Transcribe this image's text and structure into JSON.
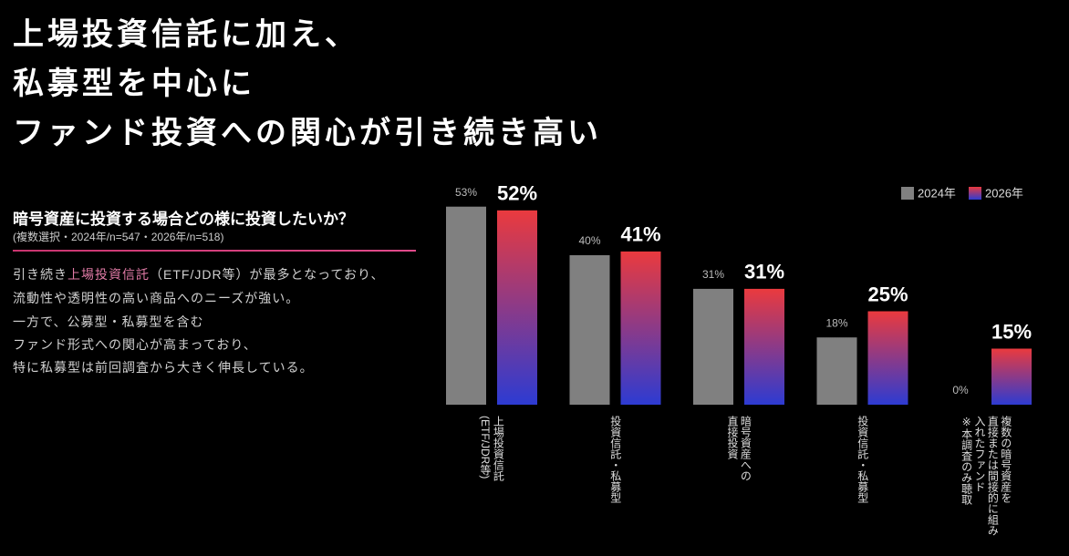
{
  "header": {
    "title_lines": [
      "上場投資信託に加え、",
      "私募型を中心に",
      "ファンド投資への関心が引き続き高い"
    ]
  },
  "panel": {
    "question": "暗号資産に投資する場合どの様に投資したいか？",
    "note": "(複数選択・2024年/n=547・2026年/n=518)",
    "lead": {
      "before": "引き続き",
      "highlight": "上場投資信託",
      "after": "（ETF/JDR等）が最多となっており、"
    },
    "lines": [
      "流動性や透明性の高い商品へのニーズが強い。",
      "一方で、公募型・私募型を含む",
      "ファンド形式への関心が高まっており、",
      "特に私募型は前回調査から大きく伸長している。"
    ]
  },
  "chart_data": {
    "type": "bar",
    "categories": [
      "上場投資信託\n(ETF/JDR等)",
      "投資信託・私募型",
      "暗号資産への\n直接投資",
      "投資信託・私募型",
      "複数の暗号資産を\n直接または間接的に組み\n入れたファンド\n※本調査のみ聴取"
    ],
    "series": [
      {
        "name": "2024年",
        "color": [
          "#808080",
          "#808080"
        ],
        "values": [
          53,
          40,
          31,
          18,
          0
        ],
        "value_labels": [
          "53%",
          "40%",
          "31%",
          "18%",
          "0%"
        ]
      },
      {
        "name": "2026年",
        "color": [
          "#ea3a3e",
          "#2d3bd2"
        ],
        "values": [
          52,
          41,
          31,
          25,
          15
        ],
        "value_labels": [
          "52%",
          "41%",
          "31%",
          "25%",
          "15%"
        ]
      }
    ],
    "legend": "top-right"
  }
}
